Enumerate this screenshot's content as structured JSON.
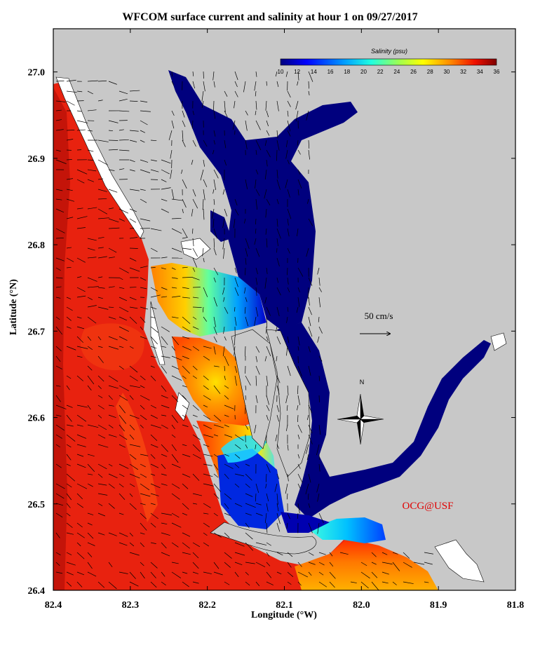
{
  "title": "WFCOM surface current and salinity at hour 1 on 09/27/2017",
  "axes": {
    "xlabel": "Longitude (°W)",
    "ylabel": "Latitude (°N)",
    "x_ticks": [
      "82.4",
      "82.3",
      "82.2",
      "82.1",
      "82.0",
      "81.9",
      "81.8"
    ],
    "y_ticks": [
      "27.0",
      "26.9",
      "26.8",
      "26.7",
      "26.6",
      "26.5",
      "26.4"
    ],
    "xlim": [
      82.4,
      81.8
    ],
    "ylim": [
      26.4,
      27.05
    ]
  },
  "colorbar": {
    "title": "Salinity (psu)",
    "labels": [
      "10",
      "12",
      "14",
      "16",
      "18",
      "20",
      "22",
      "24",
      "26",
      "28",
      "30",
      "32",
      "34",
      "36"
    ],
    "range": [
      10,
      36
    ]
  },
  "scale_label": "50 cm/s",
  "north_label": "N",
  "credit": "OCG@USF",
  "colors": {
    "land": "#c8c8c8",
    "credit": "#e00000",
    "gulf": "#e8220f",
    "fresh": "#00007e"
  }
}
